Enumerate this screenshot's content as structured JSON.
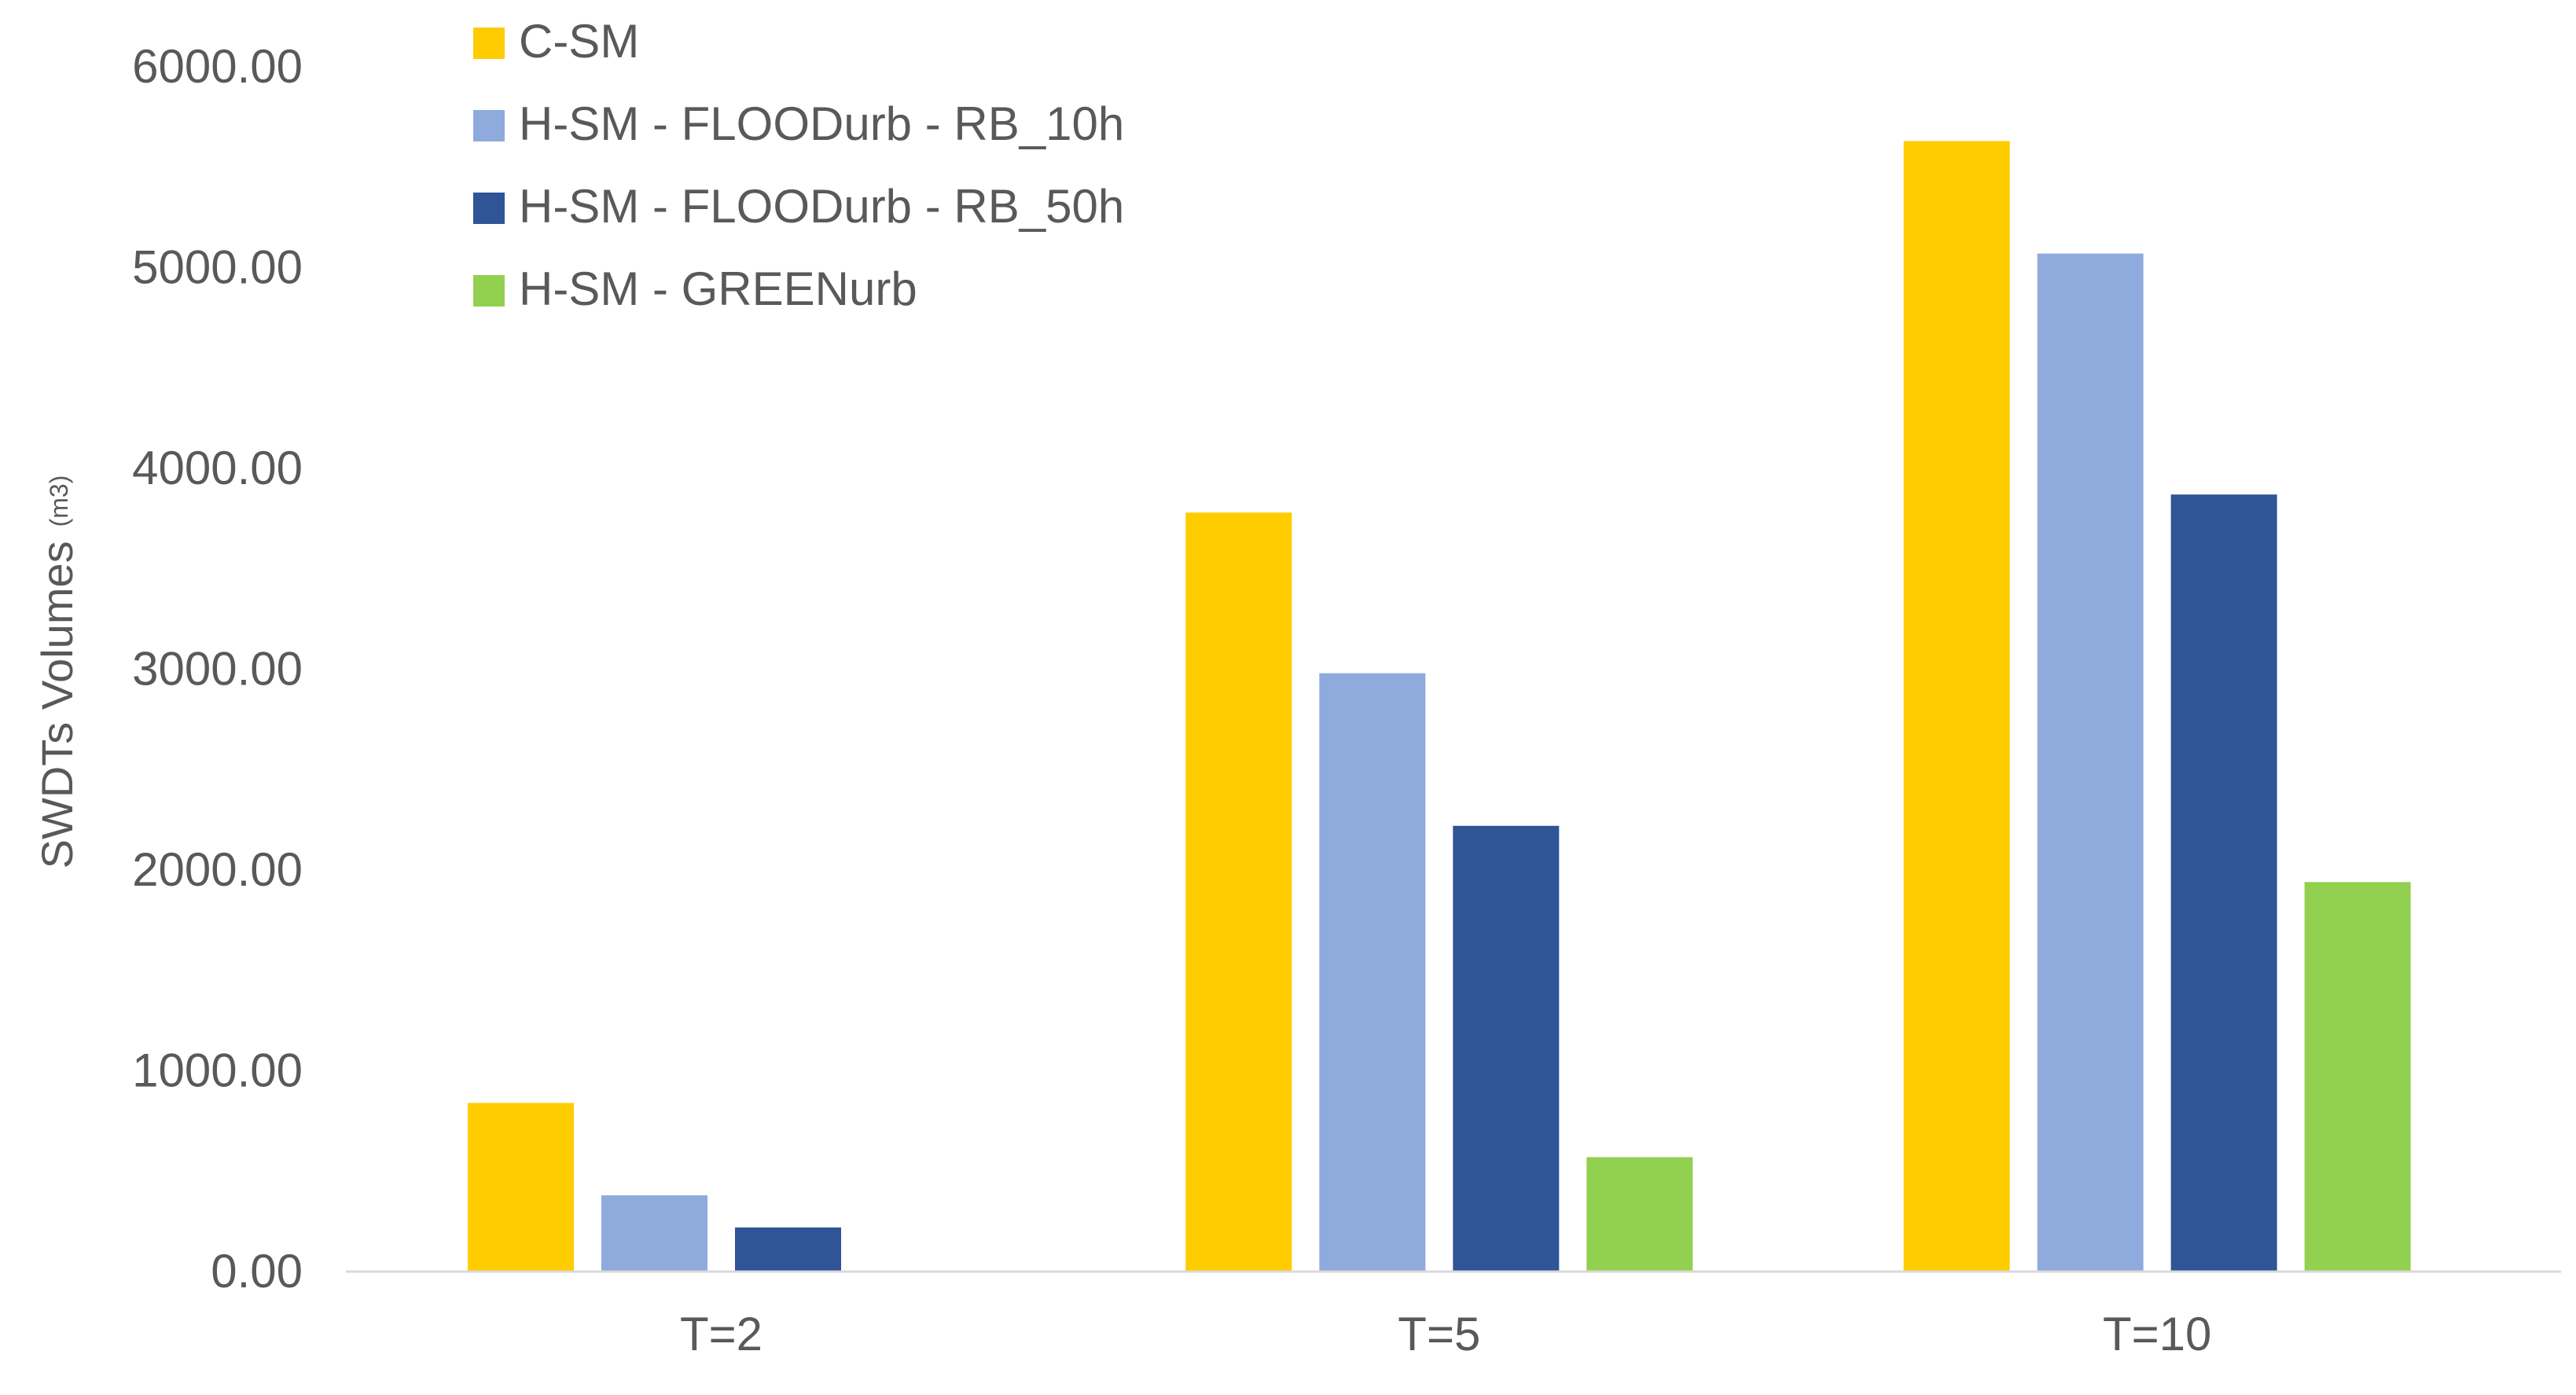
{
  "chart_data": {
    "type": "bar",
    "categories": [
      "T=2",
      "T=5",
      "T=10"
    ],
    "series": [
      {
        "name": "C-SM",
        "color": "#FFCC00",
        "values": [
          840,
          3780,
          5630
        ]
      },
      {
        "name": "H-SM - FLOODurb - RB_10h",
        "color": "#8FAADC",
        "values": [
          380,
          2980,
          5070
        ]
      },
      {
        "name": "H-SM - FLOODurb - RB_50h",
        "color": "#2F5597",
        "values": [
          220,
          2220,
          3870
        ]
      },
      {
        "name": "H-SM - GREENurb",
        "color": "#92D050",
        "values": [
          null,
          570,
          1940
        ]
      }
    ],
    "ylabel": "SWDTs Volumes",
    "yunit": "(m3)",
    "ylim": [
      0,
      6000
    ],
    "yticks": [
      "0.00",
      "1000.00",
      "2000.00",
      "3000.00",
      "4000.00",
      "5000.00",
      "6000.00"
    ],
    "grid": false,
    "legend_position": "top-left"
  }
}
